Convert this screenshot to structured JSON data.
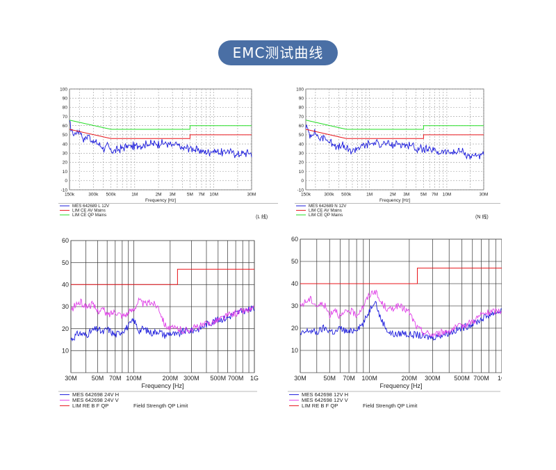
{
  "page_title": "EMC测试曲线",
  "colors": {
    "pill": "#4a6fa5",
    "mes_blue": "#1a1adc",
    "lim_red": "#e8141a",
    "lim_green": "#22dd22",
    "pink": "#e040e8",
    "grid": "#888888"
  },
  "chart_data": [
    {
      "type": "line",
      "xscale": "log",
      "xlim": [
        150000,
        30000000
      ],
      "ylim": [
        -10,
        100
      ],
      "yticks": [
        100,
        90,
        80,
        70,
        60,
        50,
        40,
        30,
        20,
        10,
        0,
        -10
      ],
      "xticks": [
        150000,
        300000,
        500000,
        1000000,
        2000000,
        3000000,
        5000000,
        7000000,
        10000000,
        30000000
      ],
      "xtick_labels": [
        "150k",
        "300k",
        "500k",
        "1M",
        "2M",
        "3M",
        "5M",
        "7M",
        "10M",
        "30M"
      ],
      "xlabel": "Frequency [Hz]",
      "side_note": "(L 线)",
      "series": [
        {
          "name": "MES  642689 L 12V",
          "color": "#1a1adc",
          "x": [
            150000,
            170000,
            200000,
            230000,
            260000,
            300000,
            350000,
            400000,
            450000,
            500000,
            600000,
            700000,
            800000,
            1000000,
            1300000,
            1600000,
            2000000,
            2500000,
            3000000,
            3300000,
            4000000,
            5000000,
            6000000,
            7000000,
            8000000,
            10000000,
            12000000,
            15000000,
            20000000,
            25000000,
            30000000
          ],
          "y": [
            62,
            50,
            55,
            45,
            50,
            42,
            40,
            35,
            38,
            33,
            33,
            36,
            37,
            38,
            39,
            40,
            40,
            41,
            38,
            40,
            35,
            36,
            33,
            33,
            30,
            33,
            30,
            33,
            28,
            30,
            30
          ]
        },
        {
          "name": "LIM  CE AV Mains",
          "color": "#e8141a",
          "x": [
            150000,
            500000,
            5000000,
            5000000,
            30000000
          ],
          "y": [
            56,
            46,
            46,
            50,
            50
          ]
        },
        {
          "name": "LIM  CE QP Mains",
          "color": "#22dd22",
          "x": [
            150000,
            500000,
            5000000,
            5000000,
            30000000
          ],
          "y": [
            66,
            56,
            56,
            60,
            60
          ]
        }
      ]
    },
    {
      "type": "line",
      "xscale": "log",
      "xlim": [
        150000,
        30000000
      ],
      "ylim": [
        -10,
        100
      ],
      "yticks": [
        100,
        90,
        80,
        70,
        60,
        50,
        40,
        30,
        20,
        10,
        0,
        -10
      ],
      "xticks": [
        150000,
        300000,
        500000,
        1000000,
        2000000,
        3000000,
        5000000,
        7000000,
        10000000,
        30000000
      ],
      "xtick_labels": [
        "150k",
        "300k",
        "500k",
        "1M",
        "2M",
        "3M",
        "5M",
        "7M",
        "10M",
        "30M"
      ],
      "xlabel": "Frequency [Hz]",
      "side_note": "(N 线)",
      "series": [
        {
          "name": "MES  642689 N 12V",
          "color": "#1a1adc",
          "x": [
            150000,
            170000,
            200000,
            230000,
            260000,
            300000,
            350000,
            400000,
            450000,
            500000,
            600000,
            700000,
            800000,
            1000000,
            1300000,
            1600000,
            2000000,
            2500000,
            3000000,
            3300000,
            4000000,
            5000000,
            6000000,
            7000000,
            8000000,
            10000000,
            12000000,
            15000000,
            20000000,
            25000000,
            30000000
          ],
          "y": [
            60,
            50,
            52,
            45,
            48,
            42,
            40,
            36,
            38,
            34,
            33,
            36,
            38,
            40,
            41,
            40,
            38,
            41,
            38,
            40,
            34,
            35,
            32,
            33,
            30,
            32,
            30,
            32,
            27,
            28,
            27
          ]
        },
        {
          "name": "LIM  CE AV Mains",
          "color": "#e8141a",
          "x": [
            150000,
            500000,
            5000000,
            5000000,
            30000000
          ],
          "y": [
            56,
            46,
            46,
            50,
            50
          ]
        },
        {
          "name": "LIM  CE QP Mains",
          "color": "#22dd22",
          "x": [
            150000,
            500000,
            5000000,
            5000000,
            30000000
          ],
          "y": [
            66,
            56,
            56,
            60,
            60
          ]
        }
      ]
    },
    {
      "type": "line",
      "xscale": "log",
      "xlim": [
        30000000,
        1000000000
      ],
      "ylim": [
        0,
        60
      ],
      "yticks": [
        60,
        50,
        40,
        30,
        20,
        10
      ],
      "xticks": [
        30000000,
        50000000,
        70000000,
        100000000,
        200000000,
        300000000,
        500000000,
        700000000,
        1000000000
      ],
      "xtick_labels": [
        "30M",
        "50M",
        "70M",
        "100M",
        "200M",
        "300M",
        "500M",
        "700M",
        "1G"
      ],
      "xlabel": "Frequency [Hz]",
      "legend_extra": "Field Strength QP Limit",
      "series": [
        {
          "name": "MES  642698 24V H",
          "color": "#1a1adc",
          "x": [
            30000000,
            35000000,
            40000000,
            45000000,
            50000000,
            55000000,
            60000000,
            70000000,
            80000000,
            90000000,
            100000000,
            110000000,
            120000000,
            140000000,
            160000000,
            180000000,
            200000000,
            230000000,
            260000000,
            300000000,
            350000000,
            400000000,
            500000000,
            600000000,
            700000000,
            800000000,
            1000000000
          ],
          "y": [
            15,
            18,
            17,
            19,
            20,
            18,
            20,
            17,
            19,
            21,
            24,
            19,
            20,
            18,
            19,
            17,
            18,
            17,
            19,
            19,
            20,
            22,
            24,
            25,
            27,
            28,
            29
          ]
        },
        {
          "name": "MES  642698 24V V",
          "color": "#e040e8",
          "x": [
            30000000,
            33000000,
            36000000,
            40000000,
            45000000,
            50000000,
            55000000,
            60000000,
            70000000,
            80000000,
            90000000,
            100000000,
            110000000,
            120000000,
            140000000,
            160000000,
            180000000,
            200000000,
            230000000,
            260000000,
            300000000,
            350000000,
            400000000,
            500000000,
            600000000,
            700000000,
            800000000,
            1000000000
          ],
          "y": [
            28,
            31,
            32,
            30,
            31,
            28,
            29,
            26,
            28,
            26,
            27,
            29,
            33,
            31,
            32,
            30,
            22,
            20,
            20,
            19,
            20,
            21,
            22,
            24,
            26,
            27,
            28,
            29
          ]
        },
        {
          "name": "LIM  RE B F QP",
          "color": "#e8141a",
          "x": [
            30000000,
            230000000,
            230000000,
            1000000000
          ],
          "y": [
            40,
            40,
            47,
            47
          ]
        }
      ]
    },
    {
      "type": "line",
      "xscale": "log",
      "xlim": [
        30000000,
        1000000000
      ],
      "ylim": [
        0,
        60
      ],
      "yticks": [
        60,
        50,
        40,
        30,
        20,
        10
      ],
      "xticks": [
        30000000,
        50000000,
        70000000,
        100000000,
        200000000,
        300000000,
        500000000,
        700000000,
        1000000000
      ],
      "xtick_labels": [
        "30M",
        "50M",
        "70M",
        "100M",
        "200M",
        "300M",
        "500M",
        "700M",
        "1G"
      ],
      "xlabel": "Frequency [Hz]",
      "legend_extra": "Field Strength QP Limit",
      "series": [
        {
          "name": "MES  642698 12V H",
          "color": "#1a1adc",
          "x": [
            30000000,
            35000000,
            40000000,
            45000000,
            50000000,
            55000000,
            60000000,
            70000000,
            80000000,
            90000000,
            100000000,
            110000000,
            120000000,
            140000000,
            160000000,
            180000000,
            200000000,
            230000000,
            260000000,
            300000000,
            350000000,
            400000000,
            500000000,
            600000000,
            700000000,
            800000000,
            1000000000
          ],
          "y": [
            17,
            19,
            18,
            20,
            19,
            18,
            20,
            18,
            20,
            22,
            28,
            33,
            25,
            18,
            17,
            18,
            17,
            17,
            16,
            16,
            17,
            18,
            20,
            22,
            24,
            26,
            28
          ]
        },
        {
          "name": "MES  642698 12V V",
          "color": "#e040e8",
          "x": [
            30000000,
            33000000,
            36000000,
            40000000,
            45000000,
            50000000,
            55000000,
            60000000,
            70000000,
            80000000,
            90000000,
            100000000,
            110000000,
            120000000,
            140000000,
            160000000,
            180000000,
            200000000,
            230000000,
            260000000,
            300000000,
            350000000,
            400000000,
            500000000,
            600000000,
            700000000,
            800000000,
            1000000000
          ],
          "y": [
            30,
            32,
            33,
            30,
            31,
            26,
            29,
            25,
            28,
            26,
            30,
            35,
            37,
            32,
            28,
            30,
            29,
            27,
            20,
            18,
            17,
            18,
            19,
            21,
            23,
            26,
            27,
            28
          ]
        },
        {
          "name": "LIM  RE B F QP",
          "color": "#e8141a",
          "x": [
            30000000,
            230000000,
            230000000,
            1000000000
          ],
          "y": [
            40,
            40,
            47,
            47
          ]
        }
      ]
    }
  ]
}
